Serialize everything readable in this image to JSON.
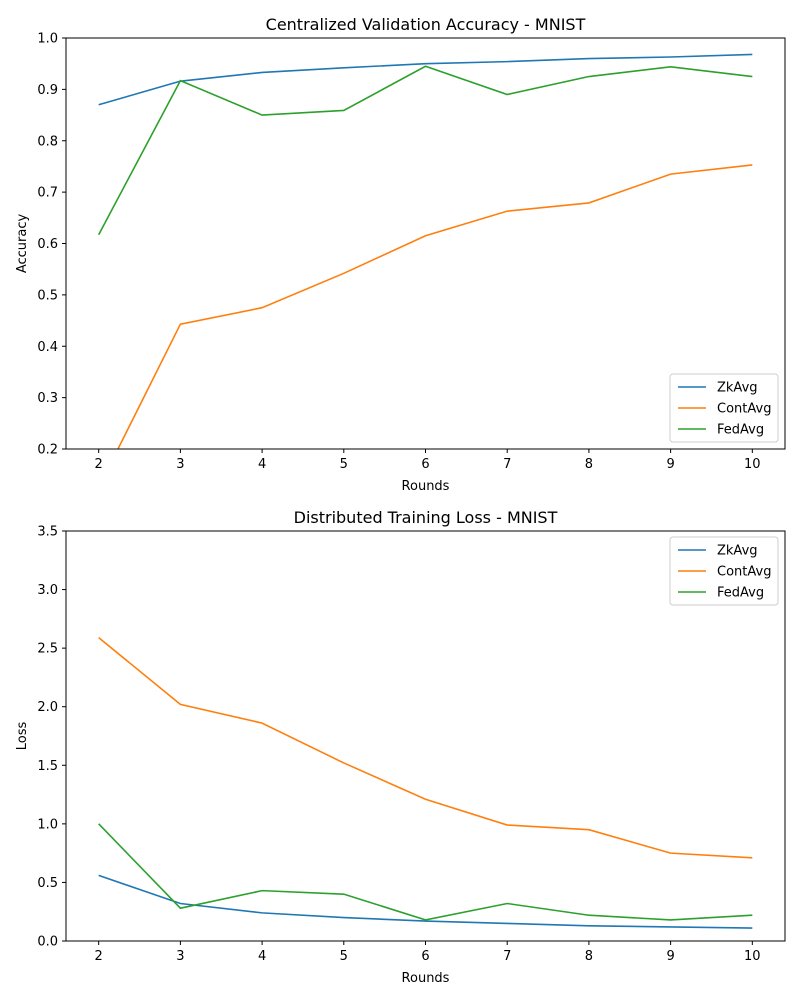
{
  "chart_data": [
    {
      "type": "line",
      "title": "Centralized Validation Accuracy - MNIST",
      "xlabel": "Rounds",
      "ylabel": "Accuracy",
      "x": [
        2,
        3,
        4,
        5,
        6,
        7,
        8,
        9,
        10
      ],
      "xlim": [
        1.6,
        10.4
      ],
      "ylim": [
        0.2,
        1.0
      ],
      "xticks": [
        2,
        3,
        4,
        5,
        6,
        7,
        8,
        9,
        10
      ],
      "yticks": [
        0.2,
        0.3,
        0.4,
        0.5,
        0.6,
        0.7,
        0.8,
        0.9,
        1.0
      ],
      "grid": false,
      "legend_position": "lower-right",
      "series": [
        {
          "name": "ZkAvg",
          "color": "#1f77b4",
          "values": [
            0.87,
            0.916,
            0.933,
            0.942,
            0.95,
            0.954,
            0.96,
            0.963,
            0.968
          ]
        },
        {
          "name": "ContAvg",
          "color": "#ff7f0e",
          "values": [
            0.125,
            0.443,
            0.475,
            0.542,
            0.615,
            0.663,
            0.679,
            0.735,
            0.753
          ]
        },
        {
          "name": "FedAvg",
          "color": "#2ca02c",
          "values": [
            0.617,
            0.917,
            0.85,
            0.859,
            0.945,
            0.89,
            0.925,
            0.944,
            0.925
          ]
        }
      ]
    },
    {
      "type": "line",
      "title": "Distributed Training Loss - MNIST",
      "xlabel": "Rounds",
      "ylabel": "Loss",
      "x": [
        2,
        3,
        4,
        5,
        6,
        7,
        8,
        9,
        10
      ],
      "xlim": [
        1.6,
        10.4
      ],
      "ylim": [
        0.0,
        3.5
      ],
      "xticks": [
        2,
        3,
        4,
        5,
        6,
        7,
        8,
        9,
        10
      ],
      "yticks": [
        0.0,
        0.5,
        1.0,
        1.5,
        2.0,
        2.5,
        3.0,
        3.5
      ],
      "grid": false,
      "legend_position": "upper-right",
      "series": [
        {
          "name": "ZkAvg",
          "color": "#1f77b4",
          "values": [
            0.56,
            0.32,
            0.24,
            0.2,
            0.17,
            0.15,
            0.13,
            0.12,
            0.11
          ]
        },
        {
          "name": "ContAvg",
          "color": "#ff7f0e",
          "values": [
            2.59,
            2.02,
            1.86,
            1.52,
            1.21,
            0.99,
            0.95,
            0.75,
            0.71
          ]
        },
        {
          "name": "FedAvg",
          "color": "#2ca02c",
          "values": [
            1.0,
            0.28,
            0.43,
            0.4,
            0.18,
            0.32,
            0.22,
            0.18,
            0.22
          ]
        }
      ]
    }
  ]
}
